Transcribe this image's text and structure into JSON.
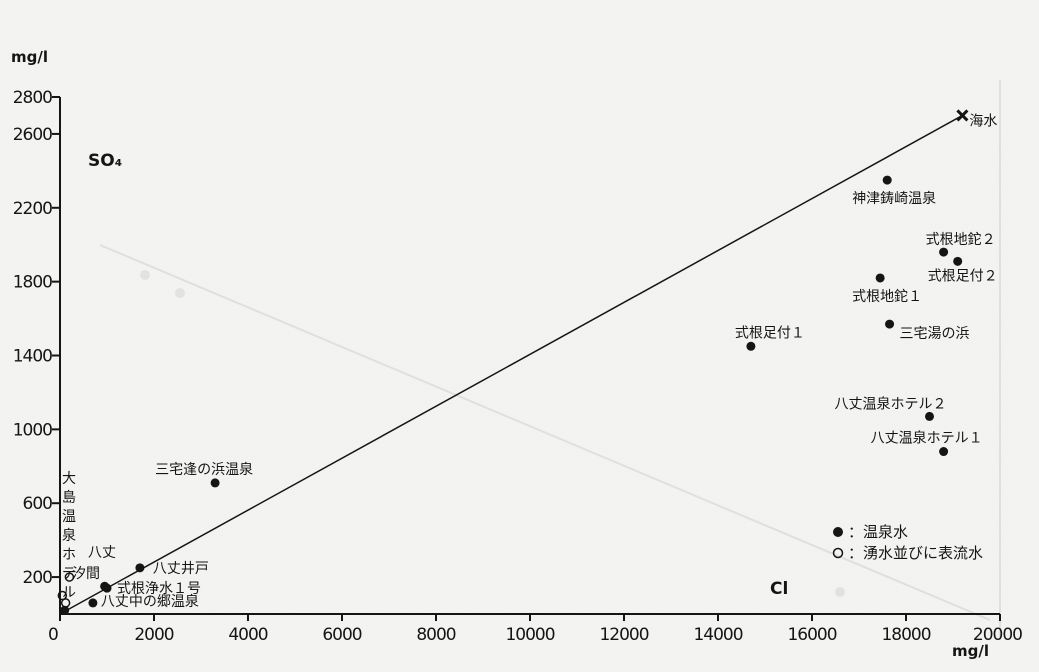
{
  "chart_data": {
    "type": "scatter",
    "title": "",
    "xlabel": "Cl",
    "ylabel": "SO₄",
    "x_unit": "mg/l",
    "y_unit": "mg/l",
    "xlim": [
      0,
      20000
    ],
    "ylim": [
      0,
      2800
    ],
    "x_ticks": [
      0,
      2000,
      4000,
      6000,
      8000,
      10000,
      12000,
      14000,
      16000,
      18000,
      20000
    ],
    "y_ticks": [
      200,
      600,
      1000,
      1400,
      1800,
      2200,
      2600,
      2800
    ],
    "grid": false,
    "legend_position": "bottom-right",
    "legend": [
      {
        "marker": "filled",
        "label": "：温泉水"
      },
      {
        "marker": "open",
        "label": "：湧水並びに表流水"
      }
    ],
    "trend_line": {
      "from": [
        0,
        0
      ],
      "to": [
        19200,
        2700
      ]
    },
    "seawater": {
      "label": "海水",
      "x": 19200,
      "y": 2700
    },
    "points": [
      {
        "label": "神津鋳崎温泉",
        "x": 17600,
        "y": 2350,
        "marker": "filled"
      },
      {
        "label": "式根地鉈２",
        "x": 18800,
        "y": 1960,
        "marker": "filled"
      },
      {
        "label": "式根足付２",
        "x": 19100,
        "y": 1910,
        "marker": "filled"
      },
      {
        "label": "式根地鉈１",
        "x": 17450,
        "y": 1820,
        "marker": "filled"
      },
      {
        "label": "三宅湯の浜",
        "x": 17650,
        "y": 1570,
        "marker": "filled"
      },
      {
        "label": "式根足付１",
        "x": 14700,
        "y": 1450,
        "marker": "filled"
      },
      {
        "label": "八丈温泉ホテル２",
        "x": 18500,
        "y": 1070,
        "marker": "filled"
      },
      {
        "label": "八丈温泉ホテル１",
        "x": 18800,
        "y": 880,
        "marker": "filled"
      },
      {
        "label": "三宅逢の浜温泉",
        "x": 3300,
        "y": 710,
        "marker": "filled"
      },
      {
        "label": "八丈井戸",
        "x": 1700,
        "y": 250,
        "marker": "filled"
      },
      {
        "label": "八丈汐間",
        "x": 950,
        "y": 150,
        "marker": "filled"
      },
      {
        "label": "式根浄水１号",
        "x": 1000,
        "y": 140,
        "marker": "filled"
      },
      {
        "label": "八丈中の郷温泉",
        "x": 700,
        "y": 60,
        "marker": "filled"
      },
      {
        "label": "大島温泉ホテル",
        "x": 100,
        "y": 20,
        "marker": "filled"
      },
      {
        "label": "",
        "x": 50,
        "y": 100,
        "marker": "open"
      },
      {
        "label": "",
        "x": 120,
        "y": 60,
        "marker": "open"
      },
      {
        "label": "",
        "x": 200,
        "y": 200,
        "marker": "open"
      }
    ]
  }
}
